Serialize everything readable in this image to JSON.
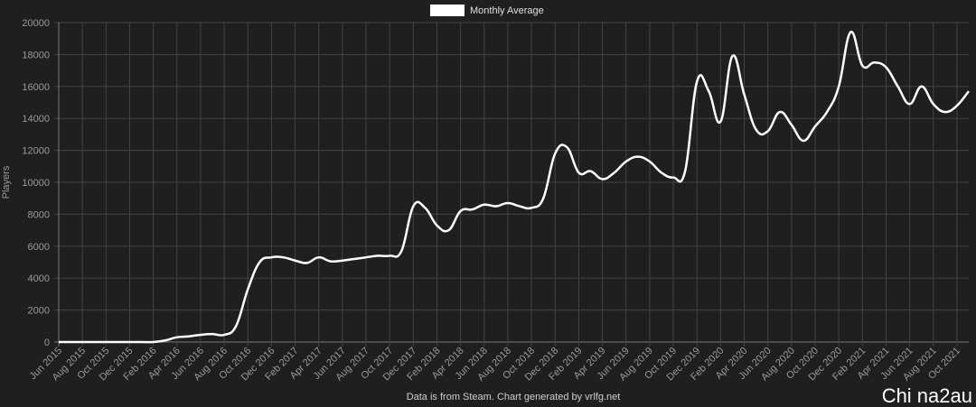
{
  "chart_data": {
    "type": "line",
    "legend": "Monthly Average",
    "y_label": "Players",
    "footer": "Data is from Steam.  Chart generated by vrlfg.net",
    "watermark": "Chi na2au",
    "categories": [
      "Jun 2015",
      null,
      "Aug 2015",
      null,
      "Oct 2015",
      null,
      "Dec 2015",
      null,
      "Feb 2016",
      null,
      "Apr 2016",
      null,
      "Jun 2016",
      null,
      "Aug 2016",
      null,
      "Oct 2016",
      null,
      "Dec 2016",
      null,
      "Feb 2017",
      null,
      "Apr 2017",
      null,
      "Jun 2017",
      null,
      "Aug 2017",
      null,
      "Oct 2017",
      null,
      "Dec 2017",
      null,
      "Feb 2018",
      null,
      "Apr 2018",
      null,
      "Jun 2018",
      null,
      "Aug 2018",
      null,
      "Oct 2018",
      null,
      "Dec 2018",
      null,
      "Feb 2019",
      null,
      "Apr 2019",
      null,
      "Jun 2019",
      null,
      "Aug 2019",
      null,
      "Oct 2019",
      null,
      "Dec 2019",
      null,
      "Feb 2020",
      null,
      "Apr 2020",
      null,
      "Jun 2020",
      null,
      "Aug 2020",
      null,
      "Oct 2020",
      null,
      "Dec 2020",
      null,
      "Feb 2021",
      null,
      "Apr 2021",
      null,
      "Jun 2021",
      null,
      "Aug 2021",
      null,
      "Oct 2021",
      null
    ],
    "series": [
      {
        "name": "Monthly Average",
        "color": "#ffffff",
        "values": [
          0,
          0,
          0,
          0,
          0,
          0,
          0,
          0,
          0,
          100,
          300,
          350,
          450,
          500,
          450,
          1000,
          3300,
          5000,
          5300,
          5300,
          5100,
          4950,
          5300,
          5050,
          5100,
          5200,
          5300,
          5400,
          5400,
          5700,
          8500,
          8400,
          7300,
          7000,
          8200,
          8300,
          8600,
          8500,
          8700,
          8500,
          8400,
          9000,
          11800,
          12200,
          10600,
          10700,
          10200,
          10600,
          11300,
          11600,
          11300,
          10600,
          10300,
          10700,
          16300,
          15700,
          13800,
          17900,
          15500,
          13300,
          13200,
          14400,
          13600,
          12600,
          13500,
          14400,
          16000,
          19400,
          17300,
          17500,
          17200,
          16000,
          14900,
          16000,
          14900,
          14400,
          14800,
          15700
        ]
      }
    ],
    "ylim": [
      0,
      20000
    ],
    "yticks": [
      0,
      2000,
      4000,
      6000,
      8000,
      10000,
      12000,
      14000,
      16000,
      18000,
      20000
    ],
    "grid": true
  }
}
